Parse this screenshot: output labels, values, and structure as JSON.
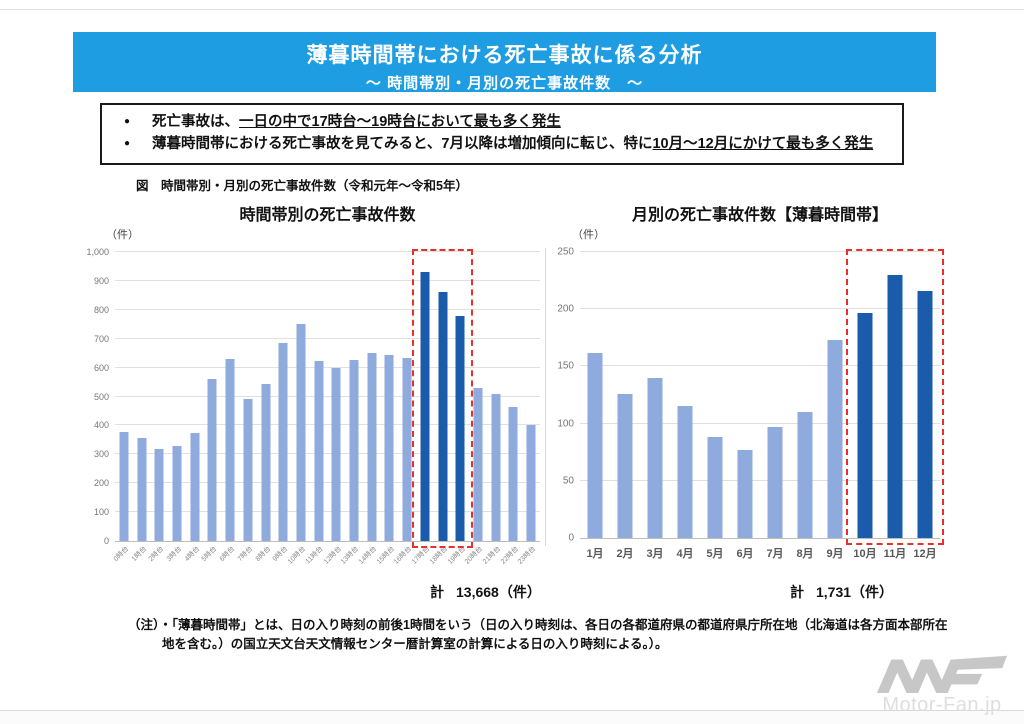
{
  "page": {
    "header": {
      "title": "薄暮時間帯における死亡事故に係る分析",
      "subtitle": "～ 時間帯別・月別の死亡事故件数　～"
    },
    "bullets": [
      {
        "marker": "●",
        "pre": "死亡事故は、",
        "underlined": "一日の中で17時台～19時台において最も多く発生"
      },
      {
        "marker": "●",
        "pre": "薄暮時間帯における死亡事故を見てみると、7月以降は増加傾向に転じ、特に",
        "underlined": "10月～12月にかけて最も多く発生"
      }
    ],
    "figure_caption": "図　時間帯別・月別の死亡事故件数（令和元年～令和5年）",
    "footnote": "（注）・「薄暮時間帯」とは、日の入り時刻の前後1時間をいう（日の入り時刻は、各日の各都道府県の都道府県庁所在地（北海道は各方面本部所在地を含む。）の国立天文台天文情報センター暦計算室の計算による日の入り時刻による。）。",
    "watermark_text": "Motor-Fan.jp"
  },
  "colors": {
    "header_bg": "#1E9DE2",
    "bar_light": "#8FAADC",
    "bar_dark": "#1A5CAB",
    "highlight_red": "#E8302A"
  },
  "chart_data": [
    {
      "type": "bar",
      "title": "時間帯別の死亡事故件数",
      "unit_label": "（件）",
      "categories": [
        "0時台",
        "1時台",
        "2時台",
        "3時台",
        "4時台",
        "5時台",
        "6時台",
        "7時台",
        "8時台",
        "9時台",
        "10時台",
        "11時台",
        "12時台",
        "13時台",
        "14時台",
        "15時台",
        "16時台",
        "17時台",
        "18時台",
        "19時台",
        "20時台",
        "21時台",
        "22時台",
        "23時台"
      ],
      "values": [
        378,
        358,
        320,
        328,
        375,
        562,
        630,
        490,
        543,
        685,
        752,
        622,
        600,
        625,
        650,
        645,
        632,
        930,
        860,
        780,
        530,
        508,
        465,
        400
      ],
      "highlight_indices": [
        17,
        18,
        19
      ],
      "ylim": [
        0,
        1000
      ],
      "yticks": [
        "0",
        "100",
        "200",
        "300",
        "400",
        "500",
        "600",
        "700",
        "800",
        "900",
        "1,000"
      ],
      "xtick_rotated": true,
      "grid": true,
      "legend": "none",
      "total": {
        "label": "計",
        "value": "13,668",
        "unit": "（件）"
      }
    },
    {
      "type": "bar",
      "title": "月別の死亡事故件数【薄暮時間帯】",
      "unit_label": "（件）",
      "categories": [
        "1月",
        "2月",
        "3月",
        "4月",
        "5月",
        "6月",
        "7月",
        "8月",
        "9月",
        "10月",
        "11月",
        "12月"
      ],
      "values": [
        162,
        126,
        140,
        115,
        88,
        77,
        97,
        110,
        173,
        197,
        230,
        216
      ],
      "highlight_indices": [
        9,
        10,
        11
      ],
      "ylim": [
        0,
        250
      ],
      "yticks": [
        "0",
        "50",
        "100",
        "150",
        "200",
        "250"
      ],
      "xtick_rotated": false,
      "grid": true,
      "legend": "none",
      "total": {
        "label": "計",
        "value": "1,731",
        "unit": "（件）"
      }
    }
  ]
}
